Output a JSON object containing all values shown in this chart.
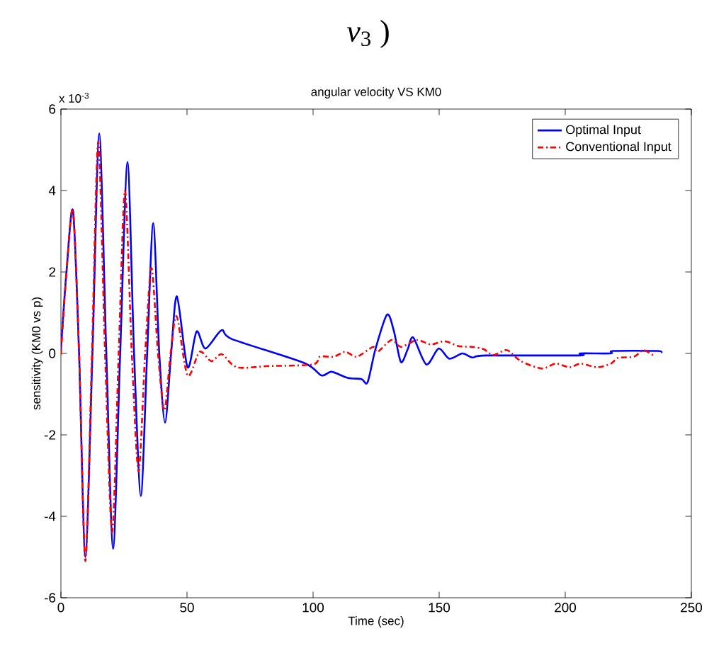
{
  "chart_data": {
    "type": "line",
    "title": "angular velocity VS KM0",
    "xlabel": "Time (sec)",
    "ylabel": "sensitivity (KM0 vs p)",
    "annotations": [
      "*v*$_{3}$ )",
      "x 10$^{-3}$"
    ],
    "xlim": [
      0,
      250
    ],
    "xticks": [
      0,
      50,
      100,
      150,
      200,
      250
    ],
    "ylim": [
      -6,
      6
    ],
    "yticks": [
      -6,
      -4,
      -2,
      0,
      2,
      4,
      6
    ],
    "grid": false,
    "legend": "top right",
    "marker": "none",
    "series": [
      {
        "name": "Optimal Input",
        "color": "#0000ff",
        "line_style": "solid",
        "x": [
          0,
          2.2,
          4.8,
          7.2,
          9.7,
          12.5,
          15.2,
          18,
          20.7,
          23.5,
          26.4,
          29,
          31.7,
          34.2,
          36.6,
          39,
          41.3,
          43.7,
          46,
          50.2,
          53.8,
          57.3,
          63.7,
          67.9,
          96.3,
          103.3,
          107.3,
          113.7,
          119.2,
          121.6,
          124.7,
          129.3,
          132,
          134.8,
          137.5,
          139.7,
          144.9,
          149.8,
          154,
          159.2,
          163.2,
          168.7,
          205.3,
          206,
          218,
          219,
          236.4,
          238
        ],
        "values": [
          0.1,
          2.0,
          3.5,
          0,
          -5.0,
          0,
          5.4,
          0,
          -4.8,
          0,
          4.7,
          0,
          -3.5,
          0,
          3.2,
          0,
          -1.7,
          0,
          1.4,
          -0.34,
          0.54,
          0.12,
          0.57,
          0.35,
          -0.23,
          -0.54,
          -0.45,
          -0.6,
          -0.63,
          -0.71,
          0.1,
          0.95,
          0.56,
          -0.21,
          0.1,
          0.39,
          -0.27,
          0.12,
          -0.13,
          0,
          -0.1,
          -0.05,
          -0.05,
          0,
          0,
          0.06,
          0.06,
          0.02
        ]
      },
      {
        "name": "Conventional Input",
        "color": "#ff0000",
        "line_style": "dashdot",
        "x": [
          0,
          2.2,
          4.8,
          7.2,
          9.7,
          12.3,
          14.8,
          17.5,
          20.3,
          22.9,
          25.4,
          28.1,
          30.8,
          33.4,
          35.9,
          38.5,
          41,
          43.5,
          45.9,
          50.2,
          55,
          59.6,
          63.8,
          69.8,
          82.6,
          99.9,
          102.7,
          108.2,
          112.8,
          117.3,
          123.8,
          125.6,
          131.1,
          134.8,
          141.2,
          146.7,
          152.2,
          157.7,
          163.2,
          167.8,
          171.4,
          176.9,
          182.4,
          190.7,
          196.2,
          201.6,
          206.2,
          212.6,
          218.1,
          220.9,
          227.3,
          231,
          235.6
        ],
        "values": [
          -0.03,
          2.0,
          3.5,
          0,
          -5.1,
          0,
          5.2,
          0,
          -4.4,
          0,
          4.0,
          0,
          -2.9,
          0,
          2.1,
          0,
          -1.4,
          0,
          0.91,
          -0.54,
          0.04,
          -0.19,
          -0.02,
          -0.34,
          -0.31,
          -0.27,
          -0.08,
          -0.08,
          0.04,
          -0.08,
          0.16,
          0.04,
          0.33,
          0.16,
          0.33,
          0.22,
          0.3,
          0.18,
          0.16,
          0.1,
          -0.04,
          0.08,
          -0.19,
          -0.37,
          -0.25,
          -0.34,
          -0.25,
          -0.34,
          -0.25,
          -0.11,
          -0.08,
          0.08,
          -0.08
        ]
      }
    ]
  }
}
